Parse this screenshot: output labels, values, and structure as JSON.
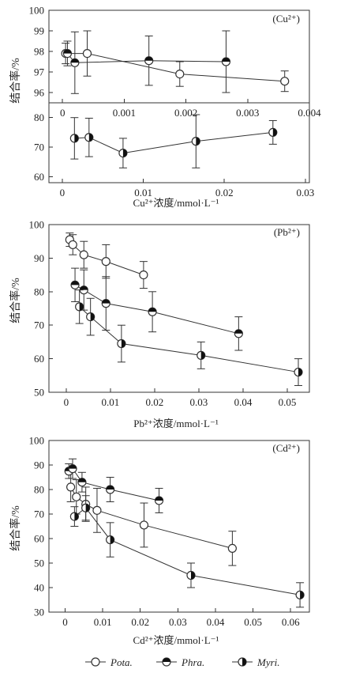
{
  "chart_data": [
    {
      "type": "scatter",
      "panel_label": "Cu²⁺",
      "ylabel": "结合率/%",
      "axes": [
        {
          "xticks": [
            0,
            0.001,
            0.002,
            0.003,
            0.004
          ],
          "xtick_labels": [
            "0",
            "0.001",
            "0.002",
            "0.003",
            "0.004"
          ],
          "xlim": [
            -0.00022,
            0.004
          ],
          "yticks": [
            96,
            97,
            98,
            99,
            100
          ],
          "ylim": [
            95.5,
            100
          ],
          "series": [
            {
              "name": "Pota.",
              "x": [
                5e-05,
                0.0004,
                0.0019,
                0.0036
              ],
              "y": [
                97.9,
                97.9,
                96.9,
                96.55
              ],
              "err": [
                0.5,
                1.1,
                0.6,
                0.5
              ]
            },
            {
              "name": "Phra.",
              "x": [
                8e-05,
                0.0002,
                0.0014,
                0.00265
              ],
              "y": [
                97.9,
                97.45,
                97.55,
                97.5
              ],
              "err": [
                0.6,
                1.5,
                1.2,
                1.5
              ]
            }
          ]
        },
        {
          "xticks": [
            0,
            0.01,
            0.02,
            0.03
          ],
          "xtick_labels": [
            "0",
            "0.01",
            "0.02",
            "0.03"
          ],
          "xlim": [
            -0.00165,
            0.0305
          ],
          "yticks": [
            60,
            70,
            80
          ],
          "ylim": [
            58,
            85
          ],
          "series": [
            {
              "name": "Myri.",
              "x": [
                0.0015,
                0.0033,
                0.0075,
                0.0165,
                0.026
              ],
              "y": [
                73,
                73.3,
                68,
                72,
                75
              ],
              "err": [
                7,
                6.5,
                5,
                9,
                4
              ]
            }
          ]
        }
      ],
      "xlabel": "Cu²⁺浓度/mmol·L⁻¹"
    },
    {
      "type": "scatter",
      "panel_label": "Pb²⁺",
      "ylabel": "结合率/%",
      "xticks": [
        0,
        0.01,
        0.02,
        0.03,
        0.04,
        0.05
      ],
      "xtick_labels": [
        "0",
        "0.01",
        "0.02",
        "0.03",
        "0.04",
        "0.05"
      ],
      "xlim": [
        -0.0039,
        0.055
      ],
      "yticks": [
        50,
        60,
        70,
        80,
        90,
        100
      ],
      "ylim": [
        50,
        100
      ],
      "series": [
        {
          "name": "Pota.",
          "x": [
            0.0008,
            0.0015,
            0.004,
            0.009,
            0.0175
          ],
          "y": [
            95.5,
            94,
            91,
            89,
            85
          ],
          "err": [
            2,
            3,
            4,
            5,
            4
          ]
        },
        {
          "name": "Phra.",
          "x": [
            0.002,
            0.004,
            0.009,
            0.0195,
            0.039
          ],
          "y": [
            82,
            80.5,
            76.5,
            74,
            67.5
          ],
          "err": [
            5,
            6,
            8,
            6,
            5
          ]
        },
        {
          "name": "Myri.",
          "x": [
            0.003,
            0.0055,
            0.0125,
            0.0305,
            0.0525
          ],
          "y": [
            75.5,
            72.5,
            64.5,
            61,
            56
          ],
          "err": [
            5,
            5.5,
            5.5,
            4,
            4
          ]
        }
      ],
      "xlabel": "Pb²⁺浓度/mmol·L⁻¹"
    },
    {
      "type": "scatter",
      "panel_label": "Cd²⁺",
      "ylabel": "结合率/%",
      "xticks": [
        0,
        0.01,
        0.02,
        0.03,
        0.04,
        0.05,
        0.06
      ],
      "xtick_labels": [
        "0",
        "0.01",
        "0.02",
        "0.03",
        "0.04",
        "0.05",
        "0.06"
      ],
      "xlim": [
        -0.0043,
        0.065
      ],
      "yticks": [
        30,
        40,
        50,
        60,
        70,
        80,
        90,
        100
      ],
      "ylim": [
        30,
        100
      ],
      "series": [
        {
          "name": "Pota.",
          "x": [
            0.0015,
            0.003,
            0.0055,
            0.0085,
            0.021,
            0.0445
          ],
          "y": [
            81,
            77,
            74,
            71.5,
            65.5,
            56
          ],
          "err": [
            6,
            7,
            7,
            9,
            9,
            7
          ]
        },
        {
          "name": "Phra.",
          "x": [
            0.001,
            0.002,
            0.0045,
            0.012,
            0.025
          ],
          "y": [
            87.5,
            88.5,
            83,
            80,
            75.5
          ],
          "err": [
            3,
            4,
            4,
            5,
            5
          ]
        },
        {
          "name": "Myri.",
          "x": [
            0.0025,
            0.0055,
            0.012,
            0.0335,
            0.0625
          ],
          "y": [
            69,
            72.5,
            59.5,
            45,
            37
          ],
          "err": [
            4,
            5,
            7,
            5,
            5
          ]
        }
      ],
      "xlabel": "Cd²⁺浓度/mmol·L⁻¹"
    }
  ],
  "legend": {
    "position": "bottom",
    "items": [
      {
        "name": "Pota.",
        "marker": "open"
      },
      {
        "name": "Phra.",
        "marker": "filled"
      },
      {
        "name": "Myri.",
        "marker": "half"
      }
    ]
  }
}
